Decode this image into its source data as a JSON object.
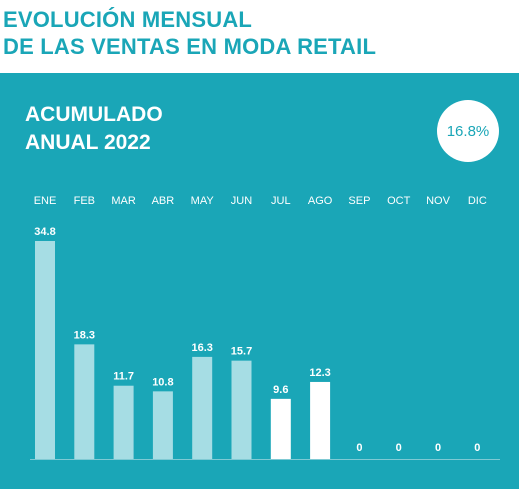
{
  "header": {
    "title": "EVOLUCIÓN MENSUAL\nDE LAS VENTAS EN MODA RETAIL"
  },
  "panel": {
    "subtitle": "ACUMULADO\nANUAL 2022",
    "badge": "16.8%"
  },
  "colors": {
    "panel": "#1aa6b7",
    "bar_light": "#a6dde4",
    "bar_white": "#ffffff",
    "text": "#ffffff"
  },
  "chart_data": {
    "type": "bar",
    "categories": [
      "ENE",
      "FEB",
      "MAR",
      "ABR",
      "MAY",
      "JUN",
      "JUL",
      "AGO",
      "SEP",
      "OCT",
      "NOV",
      "DIC"
    ],
    "values": [
      34.8,
      18.3,
      11.7,
      10.8,
      16.3,
      15.7,
      9.6,
      12.3,
      0,
      0,
      0,
      0
    ],
    "data_labels": [
      "34.8",
      "18.3",
      "11.7",
      "10.8",
      "16.3",
      "15.7",
      "9.6",
      "12.3",
      "0",
      "0",
      "0",
      "0"
    ],
    "bar_colors": [
      "#a6dde4",
      "#a6dde4",
      "#a6dde4",
      "#a6dde4",
      "#a6dde4",
      "#a6dde4",
      "#ffffff",
      "#ffffff",
      "#ffffff",
      "#ffffff",
      "#ffffff",
      "#ffffff"
    ],
    "ylim": [
      0,
      34.8
    ],
    "grid": false,
    "legend": "none"
  }
}
